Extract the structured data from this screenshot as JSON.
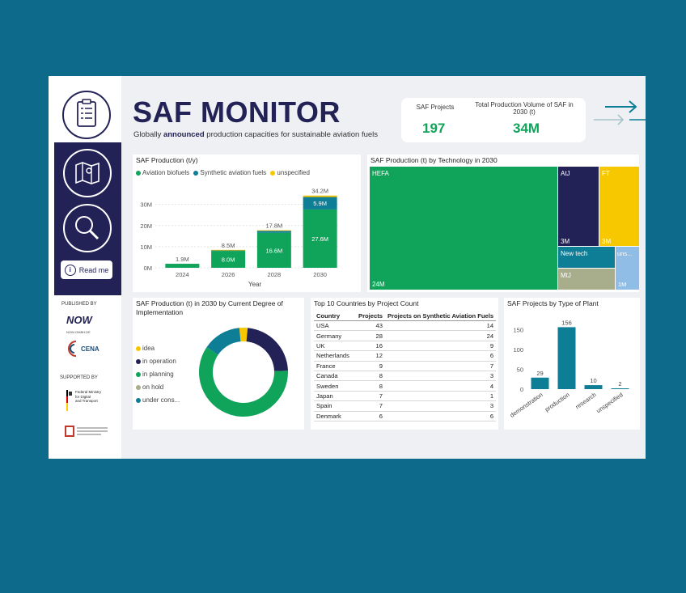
{
  "header": {
    "title": "SAF MONITOR",
    "subtitle_pre": "Globally ",
    "subtitle_bold": "announced",
    "subtitle_post": " production capacities for sustainable aviation fuels"
  },
  "kpis": {
    "projects_label": "SAF Projects",
    "projects_value": "197",
    "volume_label": "Total Production Volume of SAF in 2030 (t)",
    "volume_value": "34M"
  },
  "sidebar": {
    "readme_label": "Read me",
    "published_by": "PUBLISHED BY",
    "now_logo_sub": "NOW-GMBH.DE",
    "cena_label": "CENA",
    "supported_by": "SUPPORTED BY",
    "ministry_line1": "Federal Ministry",
    "ministry_line2": "for Digital",
    "ministry_line3": "and Transport"
  },
  "colors": {
    "navy": "#232257",
    "green": "#10a35a",
    "teal": "#0e7d96",
    "yellow": "#f7c800",
    "olive": "#a8ad8b",
    "lightblue": "#8fbde6"
  },
  "production": {
    "title": "SAF Production (t/y)",
    "legend": [
      "Aviation biofuels",
      "Synthetic aviation fuels",
      "unspecified"
    ],
    "xlabel": "Year"
  },
  "treemap": {
    "title": "SAF Production (t) by Technology in 2030",
    "tiles": [
      {
        "name": "HEFA",
        "value_label": "24M"
      },
      {
        "name": "AtJ",
        "value_label": "3M"
      },
      {
        "name": "FT",
        "value_label": "3M"
      },
      {
        "name": "New tech",
        "value_label": ""
      },
      {
        "name": "uns...",
        "value_label": "1M"
      },
      {
        "name": "MtJ",
        "value_label": ""
      }
    ]
  },
  "donut": {
    "title": "SAF Production (t) in 2030 by Current Degree of Implementation",
    "legend": [
      "idea",
      "in operation",
      "in planning",
      "on hold",
      "under cons..."
    ]
  },
  "countries": {
    "title": "Top 10 Countries by Project Count",
    "columns": [
      "Country",
      "Projects",
      "Projects on Synthetic Aviation Fuels"
    ],
    "rows": [
      [
        "USA",
        "43",
        "14"
      ],
      [
        "Germany",
        "28",
        "24"
      ],
      [
        "UK",
        "16",
        "9"
      ],
      [
        "Netherlands",
        "12",
        "6"
      ],
      [
        "France",
        "9",
        "7"
      ],
      [
        "Canada",
        "8",
        "3"
      ],
      [
        "Sweden",
        "8",
        "4"
      ],
      [
        "Japan",
        "7",
        "1"
      ],
      [
        "Spain",
        "7",
        "3"
      ],
      [
        "Denmark",
        "6",
        "6"
      ]
    ]
  },
  "chart_data": [
    {
      "type": "bar",
      "title": "SAF Production (t/y)",
      "categories": [
        "2024",
        "2026",
        "2028",
        "2030"
      ],
      "series": [
        {
          "name": "Aviation biofuels",
          "values": [
            1.9,
            8.0,
            16.6,
            27.6
          ],
          "labels": [
            "",
            "8.0M",
            "16.6M",
            "27.6M"
          ]
        },
        {
          "name": "Synthetic aviation fuels",
          "values": [
            0,
            0.3,
            0.9,
            5.9
          ],
          "labels": [
            "",
            "",
            "",
            "5.9M"
          ]
        },
        {
          "name": "unspecified",
          "values": [
            0,
            0.2,
            0.3,
            0.7
          ],
          "labels": [
            "",
            "",
            "",
            ""
          ]
        }
      ],
      "totals": [
        "1.9M",
        "8.5M",
        "17.8M",
        "34.2M"
      ],
      "ytick_labels": [
        "0M",
        "10M",
        "20M",
        "30M"
      ],
      "ylim": [
        0,
        36
      ],
      "xlabel": "Year",
      "ylabel": ""
    },
    {
      "type": "pie",
      "title": "SAF Production (t) in 2030 by Current Degree of Implementation",
      "categories": [
        "idea",
        "in operation",
        "in planning",
        "on hold",
        "under cons..."
      ],
      "values": [
        3,
        23,
        60,
        0,
        14
      ]
    },
    {
      "type": "bar",
      "title": "SAF Projects by Type of Plant",
      "categories": [
        "demonstration",
        "production",
        "research",
        "unspecified"
      ],
      "values": [
        29,
        156,
        10,
        2
      ],
      "ytick_labels": [
        "0",
        "50",
        "100",
        "150"
      ],
      "ylim": [
        0,
        165
      ]
    }
  ]
}
